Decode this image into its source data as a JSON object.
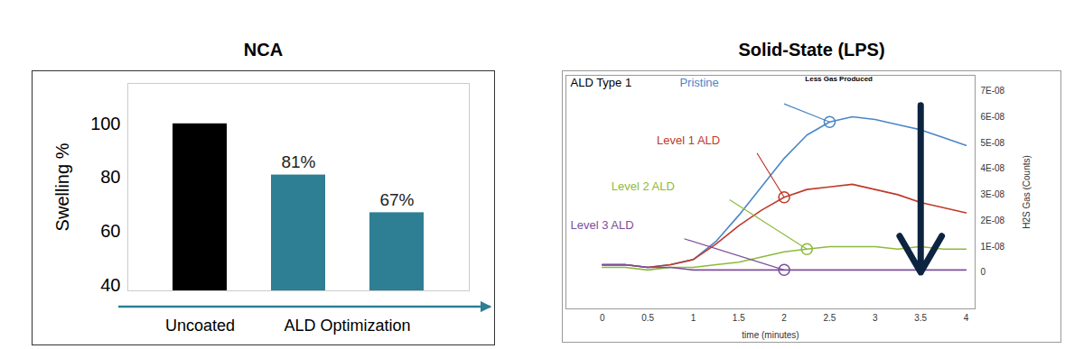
{
  "chart_data": [
    {
      "type": "bar",
      "title": "NCA",
      "categories": [
        "Uncoated",
        null,
        null
      ],
      "values": [
        100,
        81,
        67
      ],
      "value_labels": [
        null,
        "81%",
        "67%"
      ],
      "data_labels": true,
      "colors": [
        "#000000",
        "#2e7f94",
        "#2e7f94"
      ],
      "ylabel": "Swelling %",
      "ylim": [
        38,
        115
      ],
      "yticks": [
        40,
        60,
        80,
        100
      ],
      "annotations": [
        "ALD Optimization"
      ]
    },
    {
      "type": "line",
      "title": "Solid-State (LPS)",
      "x": [
        0,
        0.25,
        0.5,
        0.75,
        1,
        1.25,
        1.5,
        1.75,
        2,
        2.25,
        2.5,
        2.75,
        3,
        3.25,
        3.5,
        3.75,
        4
      ],
      "series": [
        {
          "name": "Pristine",
          "color": "#4a86c8",
          "values": [
            3e-09,
            3e-09,
            2e-09,
            3e-09,
            5e-09,
            1.2e-08,
            2.2e-08,
            3.3e-08,
            4.4e-08,
            5.3e-08,
            5.8e-08,
            6e-08,
            5.9e-08,
            5.7e-08,
            5.5e-08,
            5.2e-08,
            4.9e-08
          ]
        },
        {
          "name": "Level 1 ALD",
          "color": "#c0392b",
          "values": [
            3e-09,
            3e-09,
            2e-09,
            3e-09,
            5e-09,
            1.1e-08,
            1.8e-08,
            2.4e-08,
            2.9e-08,
            3.2e-08,
            3.3e-08,
            3.4e-08,
            3.2e-08,
            3e-08,
            2.7e-08,
            2.5e-08,
            2.3e-08
          ]
        },
        {
          "name": "Level 2 ALD",
          "color": "#8dbb3c",
          "values": [
            2e-09,
            2e-09,
            1e-09,
            2e-09,
            2e-09,
            3e-09,
            4e-09,
            6e-09,
            8e-09,
            9e-09,
            1e-08,
            1e-08,
            1e-08,
            9e-09,
            1e-08,
            9e-09,
            9e-09
          ]
        },
        {
          "name": "Level 3 ALD",
          "color": "#7b4f9d",
          "values": [
            3e-09,
            3e-09,
            2e-09,
            2e-09,
            1e-09,
            1e-09,
            1e-09,
            1e-09,
            1e-09,
            1e-09,
            1e-09,
            1e-09,
            1e-09,
            1e-09,
            1e-09,
            1e-09,
            1e-09
          ]
        }
      ],
      "xlabel": "time (minutes)",
      "ylabel": "H2S Gas (Counts)",
      "xlim": [
        -0.4,
        4.1
      ],
      "xticks": [
        0,
        0.5,
        1,
        1.5,
        2,
        2.5,
        3,
        3.5,
        4
      ],
      "ylim": [
        -1.4e-08,
        7.6e-08
      ],
      "yticks": [
        0,
        {
          "value": 1e-08,
          "label": "1E-08"
        },
        {
          "value": 2e-08,
          "label": "2E-08"
        },
        {
          "value": 3e-08,
          "label": "3E-08"
        },
        {
          "value": 4e-08,
          "label": "4E-08"
        },
        {
          "value": 5e-08,
          "label": "5E-08"
        },
        {
          "value": 6e-08,
          "label": "6E-08"
        },
        {
          "value": 7e-08,
          "label": "7E-08"
        }
      ],
      "annotations": [
        "ALD Type 1",
        "Less Gas Produced"
      ]
    }
  ]
}
